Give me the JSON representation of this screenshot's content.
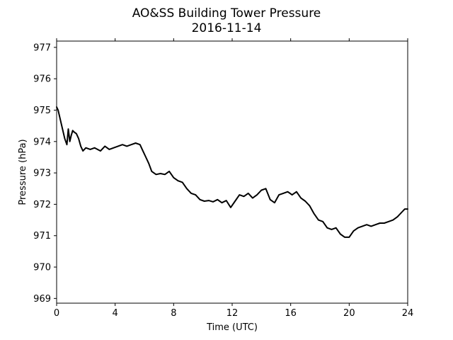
{
  "chart_data": {
    "type": "line",
    "title": "AO&SS Building Tower Pressure",
    "subtitle": "2016-11-14",
    "xlabel": "Time (UTC)",
    "ylabel": "Pressure (hPa)",
    "xlim": [
      0,
      24
    ],
    "ylim": [
      968.85,
      977.2
    ],
    "xticks": [
      0,
      4,
      8,
      12,
      16,
      20,
      24
    ],
    "yticks": [
      969,
      970,
      971,
      972,
      973,
      974,
      975,
      976,
      977
    ],
    "grid": false,
    "line_color": "#000000",
    "series": [
      {
        "x": [
          0,
          0.1,
          0.25,
          0.4,
          0.55,
          0.7,
          0.8,
          0.9,
          1.0,
          1.1,
          1.2,
          1.35,
          1.5,
          1.65,
          1.8,
          2.0,
          2.3,
          2.6,
          3.0,
          3.3,
          3.6,
          3.9,
          4.2,
          4.5,
          4.8,
          5.1,
          5.4,
          5.7,
          5.9,
          6.1,
          6.3,
          6.5,
          6.8,
          7.1,
          7.4,
          7.7,
          8.0,
          8.3,
          8.6,
          8.9,
          9.2,
          9.5,
          9.8,
          10.1,
          10.4,
          10.7,
          11.0,
          11.3,
          11.6,
          11.9,
          12.2,
          12.5,
          12.8,
          13.1,
          13.4,
          13.7,
          14.0,
          14.3,
          14.6,
          14.9,
          15.2,
          15.5,
          15.8,
          16.1,
          16.4,
          16.7,
          17.0,
          17.3,
          17.6,
          17.9,
          18.2,
          18.5,
          18.8,
          19.1,
          19.4,
          19.7,
          20.0,
          20.3,
          20.6,
          20.9,
          21.2,
          21.5,
          21.8,
          22.1,
          22.4,
          22.7,
          23.0,
          23.3,
          23.6,
          23.8,
          24.0
        ],
        "y": [
          975.1,
          975.0,
          974.7,
          974.4,
          974.1,
          973.9,
          974.4,
          974.0,
          974.2,
          974.35,
          974.3,
          974.25,
          974.1,
          973.85,
          973.7,
          973.8,
          973.75,
          973.8,
          973.7,
          973.85,
          973.75,
          973.8,
          973.85,
          973.9,
          973.85,
          973.9,
          973.95,
          973.9,
          973.7,
          973.5,
          973.3,
          973.05,
          972.95,
          972.98,
          972.95,
          973.05,
          972.85,
          972.75,
          972.7,
          972.5,
          972.35,
          972.3,
          972.15,
          972.1,
          972.12,
          972.08,
          972.15,
          972.05,
          972.12,
          971.9,
          972.1,
          972.3,
          972.25,
          972.35,
          972.2,
          972.3,
          972.45,
          972.5,
          972.15,
          972.05,
          972.3,
          972.35,
          972.4,
          972.3,
          972.4,
          972.2,
          972.1,
          971.95,
          971.7,
          971.5,
          971.45,
          971.25,
          971.2,
          971.25,
          971.05,
          970.95,
          970.95,
          971.15,
          971.25,
          971.3,
          971.35,
          971.3,
          971.35,
          971.4,
          971.4,
          971.45,
          971.5,
          971.6,
          971.75,
          971.85,
          971.85
        ]
      }
    ]
  }
}
